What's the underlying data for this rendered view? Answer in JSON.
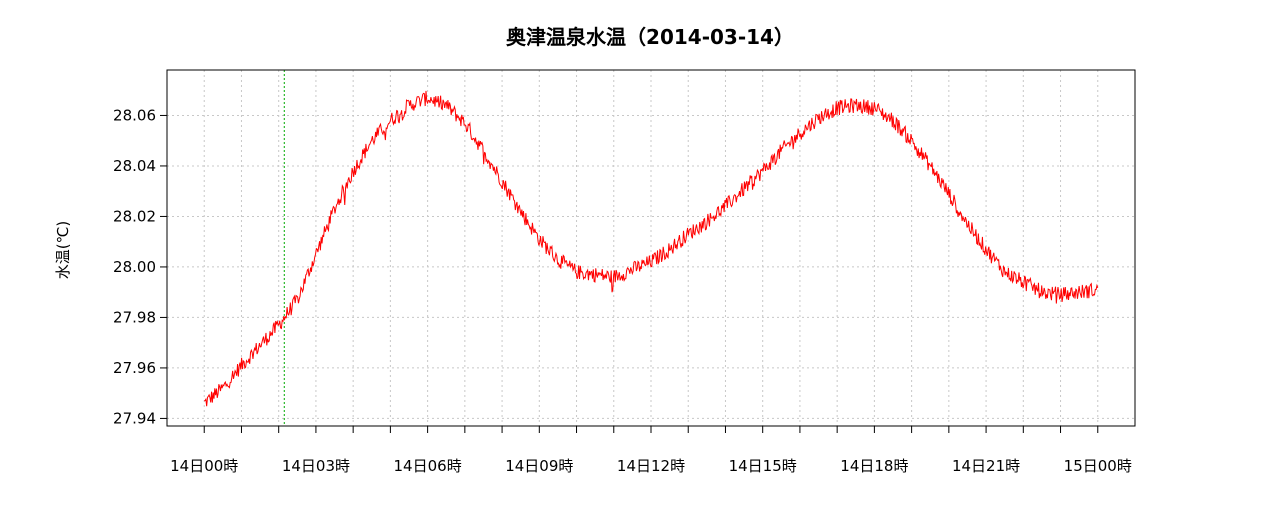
{
  "chart_data": {
    "type": "line",
    "title": "奥津温泉水温（2014-03-14）",
    "ylabel": "水温(℃)",
    "xlabel": "",
    "x_unit": "hours",
    "xlim": [
      -1,
      25
    ],
    "ylim": [
      27.937,
      28.078
    ],
    "x_ticks": [
      0,
      3,
      6,
      9,
      12,
      15,
      18,
      21,
      24
    ],
    "x_tick_labels": [
      "14日00時",
      "14日03時",
      "14日06時",
      "14日09時",
      "14日12時",
      "14日15時",
      "14日18時",
      "14日21時",
      "15日00時"
    ],
    "x_minor_ticks": [
      1,
      2,
      4,
      5,
      7,
      8,
      10,
      11,
      13,
      14,
      16,
      17,
      19,
      20,
      22,
      23
    ],
    "y_ticks": [
      27.94,
      27.96,
      27.98,
      28.0,
      28.02,
      28.04,
      28.06
    ],
    "y_tick_labels": [
      "27.94",
      "27.96",
      "27.98",
      "28.00",
      "28.02",
      "28.04",
      "28.06"
    ],
    "grid": true,
    "marker_line_x": 2.15,
    "series": [
      {
        "color": "#ff0000",
        "noise": 0.003,
        "x": [
          0,
          0.5,
          1,
          1.5,
          2,
          2.5,
          3,
          3.5,
          4,
          4.5,
          5,
          5.5,
          6,
          6.5,
          7,
          7.5,
          8,
          8.5,
          9,
          9.5,
          10,
          10.5,
          11,
          11.5,
          12,
          12.5,
          13,
          13.5,
          14,
          14.5,
          15,
          15.5,
          16,
          16.5,
          17,
          17.5,
          18,
          18.5,
          19,
          19.5,
          20,
          20.5,
          21,
          21.5,
          22,
          22.5,
          23,
          23.5,
          24
        ],
        "y": [
          27.946,
          27.952,
          27.961,
          27.969,
          27.977,
          27.987,
          28.005,
          28.023,
          28.038,
          28.05,
          28.058,
          28.064,
          28.067,
          28.064,
          28.057,
          28.046,
          28.034,
          28.022,
          28.011,
          28.003,
          27.998,
          27.997,
          27.996,
          27.999,
          28.002,
          28.007,
          28.013,
          28.018,
          28.024,
          28.031,
          28.038,
          28.046,
          28.053,
          28.059,
          28.063,
          28.064,
          28.063,
          28.058,
          28.05,
          28.04,
          28.029,
          28.017,
          28.007,
          27.998,
          27.994,
          27.99,
          27.989,
          27.99,
          27.991
        ]
      }
    ]
  }
}
